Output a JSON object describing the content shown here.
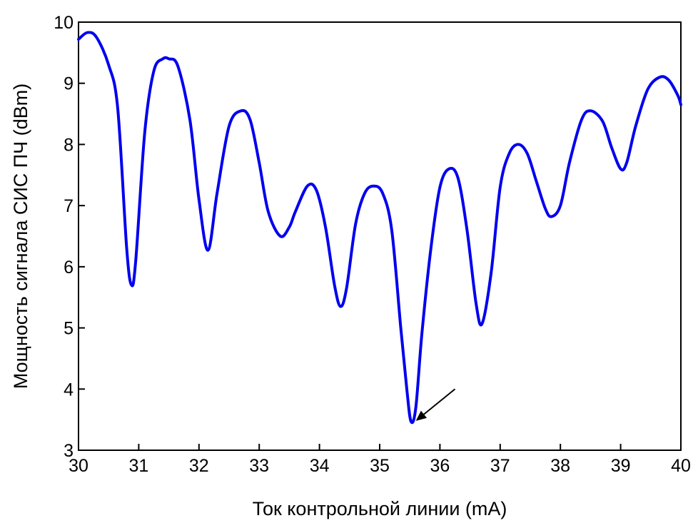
{
  "chart_data": {
    "type": "line",
    "title": "",
    "xlabel": "Ток контрольной линии (mA)",
    "ylabel": "Мощность сигнала СИС ПЧ (dBm)",
    "xlim": [
      30,
      40
    ],
    "ylim": [
      3,
      10
    ],
    "xticks": [
      "30",
      "31",
      "32",
      "33",
      "34",
      "35",
      "36",
      "37",
      "38",
      "39",
      "40"
    ],
    "yticks": [
      "3",
      "4",
      "5",
      "6",
      "7",
      "8",
      "9",
      "10"
    ],
    "grid": false,
    "legend": "none",
    "series": [
      {
        "color": "#0000ee",
        "x": [
          30.0,
          30.15,
          30.3,
          30.5,
          30.65,
          30.8,
          30.88,
          30.95,
          31.1,
          31.25,
          31.4,
          31.5,
          31.65,
          31.85,
          32.0,
          32.15,
          32.3,
          32.5,
          32.7,
          32.85,
          33.0,
          33.15,
          33.35,
          33.5,
          33.6,
          33.8,
          33.95,
          34.1,
          34.25,
          34.35,
          34.45,
          34.6,
          34.75,
          34.9,
          35.05,
          35.2,
          35.35,
          35.45,
          35.52,
          35.6,
          35.7,
          35.85,
          36.0,
          36.15,
          36.3,
          36.45,
          36.6,
          36.7,
          36.85,
          37.0,
          37.15,
          37.3,
          37.45,
          37.6,
          37.75,
          37.85,
          38.0,
          38.15,
          38.35,
          38.5,
          38.7,
          38.85,
          39.0,
          39.1,
          39.25,
          39.45,
          39.65,
          39.8,
          39.95,
          40.0
        ],
        "y": [
          9.72,
          9.83,
          9.75,
          9.3,
          8.6,
          6.3,
          5.7,
          6.1,
          8.2,
          9.2,
          9.4,
          9.4,
          9.28,
          8.4,
          7.1,
          6.27,
          7.2,
          8.3,
          8.55,
          8.4,
          7.7,
          6.9,
          6.5,
          6.65,
          6.9,
          7.32,
          7.25,
          6.65,
          5.7,
          5.35,
          5.65,
          6.7,
          7.2,
          7.32,
          7.2,
          6.6,
          5.0,
          4.0,
          3.47,
          3.7,
          4.9,
          6.3,
          7.3,
          7.6,
          7.45,
          6.6,
          5.4,
          5.07,
          5.9,
          7.3,
          7.85,
          8.0,
          7.85,
          7.4,
          6.95,
          6.82,
          7.0,
          7.7,
          8.4,
          8.55,
          8.38,
          7.95,
          7.6,
          7.7,
          8.3,
          8.9,
          9.1,
          9.05,
          8.8,
          8.65
        ]
      }
    ],
    "annotation": {
      "type": "arrow",
      "from": [
        36.25,
        4.0
      ],
      "to": [
        35.6,
        3.48
      ]
    }
  }
}
